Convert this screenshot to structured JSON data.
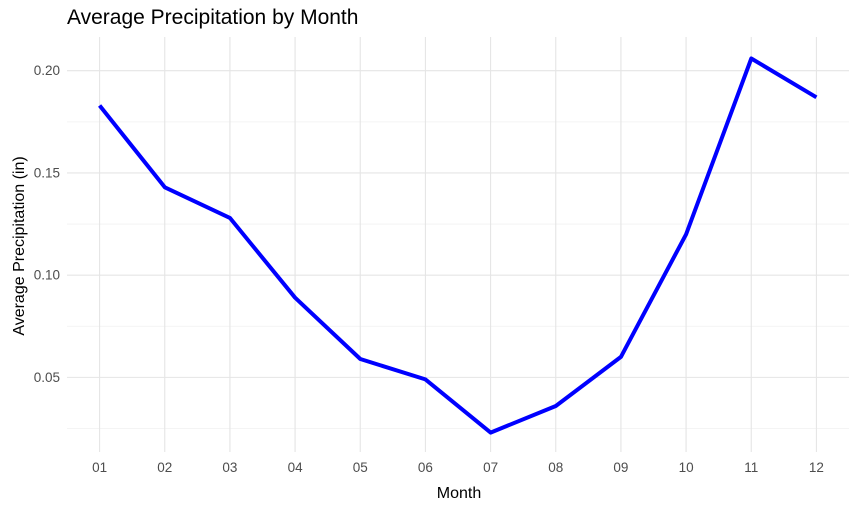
{
  "chart_data": {
    "type": "line",
    "title": "Average Precipitation by Month",
    "xlabel": "Month",
    "ylabel": "Average Precipitation (in)",
    "categories": [
      "01",
      "02",
      "03",
      "04",
      "05",
      "06",
      "07",
      "08",
      "09",
      "10",
      "11",
      "12"
    ],
    "series": [
      {
        "values": [
          0.183,
          0.143,
          0.128,
          0.089,
          0.059,
          0.049,
          0.023,
          0.036,
          0.06,
          0.12,
          0.206,
          0.187
        ]
      }
    ],
    "yticks": [
      0.05,
      0.1,
      0.15,
      0.2
    ],
    "ytick_labels": [
      "0.05",
      "0.10",
      "0.15",
      "0.20"
    ],
    "ylim": [
      0.0135,
      0.2165
    ],
    "grid": true,
    "line_color": "#0000ff"
  }
}
